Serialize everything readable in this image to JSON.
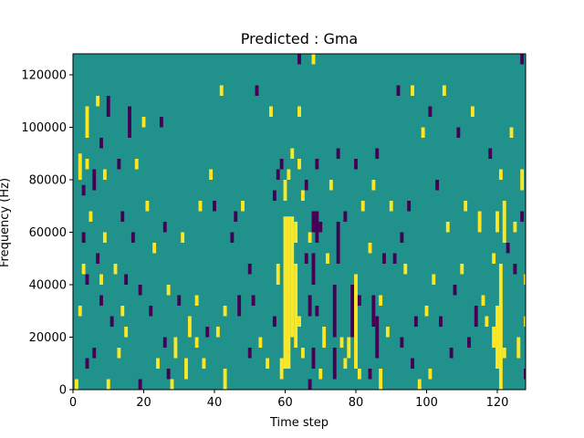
{
  "chart_data": {
    "type": "heatmap",
    "title": "Predicted : Gma",
    "xlabel": "Time step",
    "ylabel": "Frequency (Hz)",
    "xlim": [
      0,
      128
    ],
    "ylim": [
      0,
      128000
    ],
    "x_ticks": [
      0,
      20,
      40,
      60,
      80,
      100,
      120
    ],
    "x_tick_labels": [
      "0",
      "20",
      "40",
      "60",
      "80",
      "100",
      "120"
    ],
    "y_ticks": [
      0,
      20000,
      40000,
      60000,
      80000,
      100000,
      120000
    ],
    "y_tick_labels": [
      "0",
      "20000",
      "40000",
      "60000",
      "80000",
      "100000",
      "120000"
    ],
    "grid": false,
    "legend": "none",
    "colormap": "viridis",
    "colors": {
      "background": "#21918c",
      "high": "#fde725",
      "low": "#440154"
    },
    "segments": [
      {
        "t": 1,
        "f0": 0,
        "f1": 4000,
        "v": "high"
      },
      {
        "t": 2,
        "f0": 28000,
        "f1": 32000,
        "v": "high"
      },
      {
        "t": 2,
        "f0": 80000,
        "f1": 90000,
        "v": "high"
      },
      {
        "t": 3,
        "f0": 56000,
        "f1": 60000,
        "v": "low"
      },
      {
        "t": 3,
        "f0": 74000,
        "f1": 78000,
        "v": "low"
      },
      {
        "t": 3,
        "f0": 44000,
        "f1": 48000,
        "v": "high"
      },
      {
        "t": 4,
        "f0": 8000,
        "f1": 12000,
        "v": "low"
      },
      {
        "t": 4,
        "f0": 40000,
        "f1": 44000,
        "v": "low"
      },
      {
        "t": 4,
        "f0": 96000,
        "f1": 108000,
        "v": "high"
      },
      {
        "t": 4,
        "f0": 84000,
        "f1": 88000,
        "v": "high"
      },
      {
        "t": 5,
        "f0": 64000,
        "f1": 68000,
        "v": "high"
      },
      {
        "t": 6,
        "f0": 12000,
        "f1": 16000,
        "v": "low"
      },
      {
        "t": 6,
        "f0": 76000,
        "f1": 84000,
        "v": "low"
      },
      {
        "t": 7,
        "f0": 48000,
        "f1": 52000,
        "v": "low"
      },
      {
        "t": 7,
        "f0": 108000,
        "f1": 112000,
        "v": "high"
      },
      {
        "t": 8,
        "f0": 32000,
        "f1": 36000,
        "v": "low"
      },
      {
        "t": 8,
        "f0": 92000,
        "f1": 96000,
        "v": "low"
      },
      {
        "t": 8,
        "f0": 40000,
        "f1": 44000,
        "v": "high"
      },
      {
        "t": 9,
        "f0": 80000,
        "f1": 84000,
        "v": "high"
      },
      {
        "t": 9,
        "f0": 56000,
        "f1": 60000,
        "v": "high"
      },
      {
        "t": 10,
        "f0": 0,
        "f1": 4000,
        "v": "high"
      },
      {
        "t": 10,
        "f0": 104000,
        "f1": 112000,
        "v": "low"
      },
      {
        "t": 11,
        "f0": 24000,
        "f1": 28000,
        "v": "low"
      },
      {
        "t": 12,
        "f0": 44000,
        "f1": 48000,
        "v": "high"
      },
      {
        "t": 13,
        "f0": 12000,
        "f1": 16000,
        "v": "high"
      },
      {
        "t": 13,
        "f0": 84000,
        "f1": 88000,
        "v": "low"
      },
      {
        "t": 14,
        "f0": 28000,
        "f1": 32000,
        "v": "high"
      },
      {
        "t": 14,
        "f0": 64000,
        "f1": 68000,
        "v": "low"
      },
      {
        "t": 15,
        "f0": 40000,
        "f1": 44000,
        "v": "low"
      },
      {
        "t": 15,
        "f0": 20000,
        "f1": 24000,
        "v": "high"
      },
      {
        "t": 16,
        "f0": 96000,
        "f1": 108000,
        "v": "low"
      },
      {
        "t": 17,
        "f0": 56000,
        "f1": 60000,
        "v": "low"
      },
      {
        "t": 18,
        "f0": 84000,
        "f1": 88000,
        "v": "high"
      },
      {
        "t": 19,
        "f0": 0,
        "f1": 4000,
        "v": "low"
      },
      {
        "t": 19,
        "f0": 36000,
        "f1": 40000,
        "v": "low"
      },
      {
        "t": 20,
        "f0": 100000,
        "f1": 104000,
        "v": "high"
      },
      {
        "t": 21,
        "f0": 68000,
        "f1": 72000,
        "v": "high"
      },
      {
        "t": 22,
        "f0": 28000,
        "f1": 32000,
        "v": "low"
      },
      {
        "t": 23,
        "f0": 52000,
        "f1": 56000,
        "v": "high"
      },
      {
        "t": 24,
        "f0": 8000,
        "f1": 12000,
        "v": "high"
      },
      {
        "t": 25,
        "f0": 100000,
        "f1": 104000,
        "v": "low"
      },
      {
        "t": 26,
        "f0": 16000,
        "f1": 20000,
        "v": "low"
      },
      {
        "t": 26,
        "f0": 60000,
        "f1": 64000,
        "v": "low"
      },
      {
        "t": 27,
        "f0": 4000,
        "f1": 8000,
        "v": "low"
      },
      {
        "t": 27,
        "f0": 36000,
        "f1": 40000,
        "v": "high"
      },
      {
        "t": 28,
        "f0": 0,
        "f1": 4000,
        "v": "high"
      },
      {
        "t": 29,
        "f0": 12000,
        "f1": 20000,
        "v": "high"
      },
      {
        "t": 30,
        "f0": 32000,
        "f1": 36000,
        "v": "low"
      },
      {
        "t": 31,
        "f0": 56000,
        "f1": 60000,
        "v": "high"
      },
      {
        "t": 32,
        "f0": 4000,
        "f1": 12000,
        "v": "high"
      },
      {
        "t": 33,
        "f0": 20000,
        "f1": 28000,
        "v": "high"
      },
      {
        "t": 35,
        "f0": 32000,
        "f1": 36000,
        "v": "high"
      },
      {
        "t": 35,
        "f0": 16000,
        "f1": 20000,
        "v": "high"
      },
      {
        "t": 36,
        "f0": 68000,
        "f1": 72000,
        "v": "high"
      },
      {
        "t": 37,
        "f0": 8000,
        "f1": 12000,
        "v": "high"
      },
      {
        "t": 38,
        "f0": 20000,
        "f1": 24000,
        "v": "low"
      },
      {
        "t": 39,
        "f0": 80000,
        "f1": 84000,
        "v": "high"
      },
      {
        "t": 40,
        "f0": 68000,
        "f1": 72000,
        "v": "low"
      },
      {
        "t": 41,
        "f0": 20000,
        "f1": 24000,
        "v": "high"
      },
      {
        "t": 42,
        "f0": 112000,
        "f1": 116000,
        "v": "high"
      },
      {
        "t": 43,
        "f0": 28000,
        "f1": 32000,
        "v": "high"
      },
      {
        "t": 43,
        "f0": 0,
        "f1": 8000,
        "v": "high"
      },
      {
        "t": 45,
        "f0": 56000,
        "f1": 60000,
        "v": "low"
      },
      {
        "t": 46,
        "f0": 64000,
        "f1": 68000,
        "v": "low"
      },
      {
        "t": 47,
        "f0": 28000,
        "f1": 36000,
        "v": "low"
      },
      {
        "t": 48,
        "f0": 68000,
        "f1": 72000,
        "v": "high"
      },
      {
        "t": 50,
        "f0": 44000,
        "f1": 48000,
        "v": "low"
      },
      {
        "t": 50,
        "f0": 12000,
        "f1": 16000,
        "v": "low"
      },
      {
        "t": 51,
        "f0": 32000,
        "f1": 36000,
        "v": "low"
      },
      {
        "t": 52,
        "f0": 112000,
        "f1": 116000,
        "v": "low"
      },
      {
        "t": 53,
        "f0": 16000,
        "f1": 20000,
        "v": "high"
      },
      {
        "t": 55,
        "f0": 8000,
        "f1": 12000,
        "v": "high"
      },
      {
        "t": 56,
        "f0": 104000,
        "f1": 108000,
        "v": "high"
      },
      {
        "t": 57,
        "f0": 24000,
        "f1": 28000,
        "v": "low"
      },
      {
        "t": 57,
        "f0": 72000,
        "f1": 76000,
        "v": "low"
      },
      {
        "t": 58,
        "f0": 40000,
        "f1": 48000,
        "v": "high"
      },
      {
        "t": 58,
        "f0": 80000,
        "f1": 84000,
        "v": "low"
      },
      {
        "t": 59,
        "f0": 4000,
        "f1": 12000,
        "v": "high"
      },
      {
        "t": 59,
        "f0": 84000,
        "f1": 88000,
        "v": "low"
      },
      {
        "t": 60,
        "f0": 8000,
        "f1": 66000,
        "v": "high"
      },
      {
        "t": 60,
        "f0": 72000,
        "f1": 80000,
        "v": "high"
      },
      {
        "t": 61,
        "f0": 8000,
        "f1": 66000,
        "v": "high"
      },
      {
        "t": 61,
        "f0": 80000,
        "f1": 84000,
        "v": "high"
      },
      {
        "t": 62,
        "f0": 20000,
        "f1": 66000,
        "v": "high"
      },
      {
        "t": 62,
        "f0": 88000,
        "f1": 92000,
        "v": "high"
      },
      {
        "t": 63,
        "f0": 16000,
        "f1": 48000,
        "v": "high"
      },
      {
        "t": 63,
        "f0": 56000,
        "f1": 64000,
        "v": "high"
      },
      {
        "t": 64,
        "f0": 24000,
        "f1": 28000,
        "v": "high"
      },
      {
        "t": 64,
        "f0": 84000,
        "f1": 88000,
        "v": "high"
      },
      {
        "t": 64,
        "f0": 104000,
        "f1": 108000,
        "v": "high"
      },
      {
        "t": 64,
        "f0": 124000,
        "f1": 128000,
        "v": "low"
      },
      {
        "t": 65,
        "f0": 72000,
        "f1": 76000,
        "v": "high"
      },
      {
        "t": 65,
        "f0": 12000,
        "f1": 16000,
        "v": "high"
      },
      {
        "t": 66,
        "f0": 76000,
        "f1": 80000,
        "v": "low"
      },
      {
        "t": 66,
        "f0": 48000,
        "f1": 52000,
        "v": "low"
      },
      {
        "t": 67,
        "f0": 0,
        "f1": 4000,
        "v": "low"
      },
      {
        "t": 67,
        "f0": 28000,
        "f1": 36000,
        "v": "low"
      },
      {
        "t": 67,
        "f0": 56000,
        "f1": 60000,
        "v": "high"
      },
      {
        "t": 68,
        "f0": 8000,
        "f1": 16000,
        "v": "low"
      },
      {
        "t": 68,
        "f0": 40000,
        "f1": 52000,
        "v": "low"
      },
      {
        "t": 68,
        "f0": 60000,
        "f1": 68000,
        "v": "low"
      },
      {
        "t": 68,
        "f0": 124000,
        "f1": 128000,
        "v": "high"
      },
      {
        "t": 69,
        "f0": 28000,
        "f1": 32000,
        "v": "low"
      },
      {
        "t": 69,
        "f0": 56000,
        "f1": 68000,
        "v": "low"
      },
      {
        "t": 69,
        "f0": 84000,
        "f1": 88000,
        "v": "low"
      },
      {
        "t": 70,
        "f0": 4000,
        "f1": 8000,
        "v": "high"
      },
      {
        "t": 70,
        "f0": 60000,
        "f1": 64000,
        "v": "low"
      },
      {
        "t": 71,
        "f0": 16000,
        "f1": 24000,
        "v": "high"
      },
      {
        "t": 72,
        "f0": 48000,
        "f1": 52000,
        "v": "high"
      },
      {
        "t": 73,
        "f0": 76000,
        "f1": 80000,
        "v": "high"
      },
      {
        "t": 74,
        "f0": 4000,
        "f1": 16000,
        "v": "low"
      },
      {
        "t": 74,
        "f0": 20000,
        "f1": 40000,
        "v": "low"
      },
      {
        "t": 75,
        "f0": 48000,
        "f1": 64000,
        "v": "low"
      },
      {
        "t": 75,
        "f0": 88000,
        "f1": 92000,
        "v": "low"
      },
      {
        "t": 76,
        "f0": 16000,
        "f1": 20000,
        "v": "high"
      },
      {
        "t": 77,
        "f0": 8000,
        "f1": 12000,
        "v": "high"
      },
      {
        "t": 77,
        "f0": 64000,
        "f1": 68000,
        "v": "low"
      },
      {
        "t": 78,
        "f0": 12000,
        "f1": 20000,
        "v": "high"
      },
      {
        "t": 79,
        "f0": 20000,
        "f1": 40000,
        "v": "low"
      },
      {
        "t": 80,
        "f0": 8000,
        "f1": 44000,
        "v": "high"
      },
      {
        "t": 80,
        "f0": 84000,
        "f1": 88000,
        "v": "low"
      },
      {
        "t": 81,
        "f0": 4000,
        "f1": 8000,
        "v": "high"
      },
      {
        "t": 81,
        "f0": 32000,
        "f1": 36000,
        "v": "low"
      },
      {
        "t": 82,
        "f0": 68000,
        "f1": 72000,
        "v": "high"
      },
      {
        "t": 84,
        "f0": 4000,
        "f1": 8000,
        "v": "low"
      },
      {
        "t": 84,
        "f0": 52000,
        "f1": 56000,
        "v": "high"
      },
      {
        "t": 85,
        "f0": 24000,
        "f1": 36000,
        "v": "low"
      },
      {
        "t": 85,
        "f0": 76000,
        "f1": 80000,
        "v": "high"
      },
      {
        "t": 86,
        "f0": 12000,
        "f1": 28000,
        "v": "low"
      },
      {
        "t": 86,
        "f0": 88000,
        "f1": 92000,
        "v": "low"
      },
      {
        "t": 87,
        "f0": 0,
        "f1": 8000,
        "v": "high"
      },
      {
        "t": 87,
        "f0": 32000,
        "f1": 36000,
        "v": "high"
      },
      {
        "t": 88,
        "f0": 48000,
        "f1": 52000,
        "v": "low"
      },
      {
        "t": 89,
        "f0": 20000,
        "f1": 24000,
        "v": "high"
      },
      {
        "t": 90,
        "f0": 68000,
        "f1": 72000,
        "v": "high"
      },
      {
        "t": 91,
        "f0": 48000,
        "f1": 52000,
        "v": "low"
      },
      {
        "t": 92,
        "f0": 112000,
        "f1": 116000,
        "v": "low"
      },
      {
        "t": 93,
        "f0": 16000,
        "f1": 20000,
        "v": "low"
      },
      {
        "t": 93,
        "f0": 56000,
        "f1": 60000,
        "v": "low"
      },
      {
        "t": 94,
        "f0": 44000,
        "f1": 48000,
        "v": "high"
      },
      {
        "t": 95,
        "f0": 68000,
        "f1": 72000,
        "v": "low"
      },
      {
        "t": 96,
        "f0": 8000,
        "f1": 12000,
        "v": "low"
      },
      {
        "t": 96,
        "f0": 112000,
        "f1": 116000,
        "v": "high"
      },
      {
        "t": 97,
        "f0": 24000,
        "f1": 28000,
        "v": "low"
      },
      {
        "t": 98,
        "f0": 0,
        "f1": 4000,
        "v": "high"
      },
      {
        "t": 99,
        "f0": 96000,
        "f1": 100000,
        "v": "high"
      },
      {
        "t": 100,
        "f0": 28000,
        "f1": 32000,
        "v": "high"
      },
      {
        "t": 101,
        "f0": 104000,
        "f1": 108000,
        "v": "low"
      },
      {
        "t": 101,
        "f0": 4000,
        "f1": 8000,
        "v": "high"
      },
      {
        "t": 102,
        "f0": 40000,
        "f1": 44000,
        "v": "high"
      },
      {
        "t": 103,
        "f0": 76000,
        "f1": 80000,
        "v": "low"
      },
      {
        "t": 104,
        "f0": 24000,
        "f1": 28000,
        "v": "low"
      },
      {
        "t": 105,
        "f0": 112000,
        "f1": 116000,
        "v": "high"
      },
      {
        "t": 106,
        "f0": 60000,
        "f1": 64000,
        "v": "high"
      },
      {
        "t": 107,
        "f0": 12000,
        "f1": 16000,
        "v": "low"
      },
      {
        "t": 108,
        "f0": 36000,
        "f1": 40000,
        "v": "low"
      },
      {
        "t": 109,
        "f0": 96000,
        "f1": 100000,
        "v": "low"
      },
      {
        "t": 110,
        "f0": 44000,
        "f1": 48000,
        "v": "high"
      },
      {
        "t": 111,
        "f0": 68000,
        "f1": 72000,
        "v": "high"
      },
      {
        "t": 112,
        "f0": 16000,
        "f1": 20000,
        "v": "low"
      },
      {
        "t": 113,
        "f0": 104000,
        "f1": 108000,
        "v": "high"
      },
      {
        "t": 114,
        "f0": 24000,
        "f1": 32000,
        "v": "low"
      },
      {
        "t": 115,
        "f0": 60000,
        "f1": 68000,
        "v": "high"
      },
      {
        "t": 116,
        "f0": 32000,
        "f1": 36000,
        "v": "high"
      },
      {
        "t": 117,
        "f0": 24000,
        "f1": 28000,
        "v": "high"
      },
      {
        "t": 118,
        "f0": 88000,
        "f1": 92000,
        "v": "low"
      },
      {
        "t": 119,
        "f0": 16000,
        "f1": 24000,
        "v": "high"
      },
      {
        "t": 119,
        "f0": 48000,
        "f1": 52000,
        "v": "high"
      },
      {
        "t": 120,
        "f0": 8000,
        "f1": 32000,
        "v": "high"
      },
      {
        "t": 120,
        "f0": 60000,
        "f1": 68000,
        "v": "high"
      },
      {
        "t": 121,
        "f0": 0,
        "f1": 48000,
        "v": "high"
      },
      {
        "t": 121,
        "f0": 80000,
        "f1": 84000,
        "v": "high"
      },
      {
        "t": 122,
        "f0": 12000,
        "f1": 16000,
        "v": "high"
      },
      {
        "t": 122,
        "f0": 56000,
        "f1": 72000,
        "v": "high"
      },
      {
        "t": 123,
        "f0": 52000,
        "f1": 56000,
        "v": "low"
      },
      {
        "t": 124,
        "f0": 96000,
        "f1": 100000,
        "v": "high"
      },
      {
        "t": 125,
        "f0": 44000,
        "f1": 48000,
        "v": "low"
      },
      {
        "t": 125,
        "f0": 60000,
        "f1": 64000,
        "v": "high"
      },
      {
        "t": 126,
        "f0": 12000,
        "f1": 20000,
        "v": "high"
      },
      {
        "t": 127,
        "f0": 64000,
        "f1": 68000,
        "v": "low"
      },
      {
        "t": 127,
        "f0": 76000,
        "f1": 84000,
        "v": "high"
      },
      {
        "t": 127,
        "f0": 124000,
        "f1": 128000,
        "v": "low"
      },
      {
        "t": 128,
        "f0": 4000,
        "f1": 8000,
        "v": "low"
      },
      {
        "t": 128,
        "f0": 24000,
        "f1": 28000,
        "v": "high"
      },
      {
        "t": 128,
        "f0": 40000,
        "f1": 44000,
        "v": "high"
      }
    ]
  }
}
